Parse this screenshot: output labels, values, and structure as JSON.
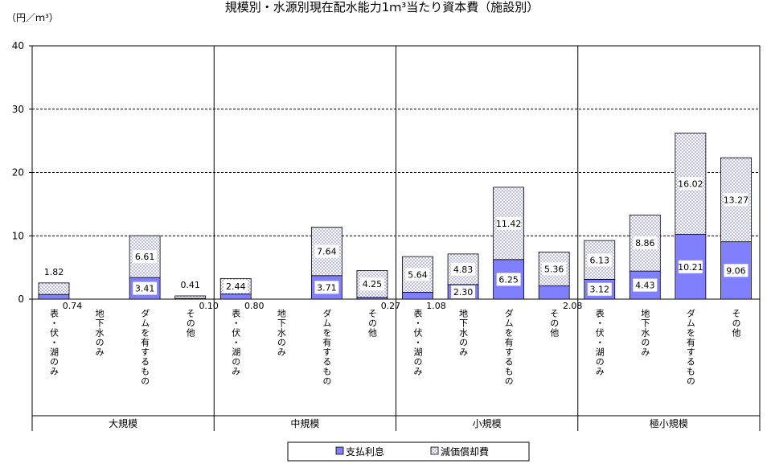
{
  "chart_data": {
    "type": "stacked_bar",
    "title": "規模別・水源別現在配水能力1ｍ³当たり資本費（施設別）",
    "y_label": "（円／ｍ³）",
    "groups": [
      "大規模",
      "中規模",
      "小規模",
      "極小規模"
    ],
    "categories": [
      "表・伏・湖のみ",
      "地下水のみ",
      "ダムを有するもの",
      "その他",
      "表・伏・湖のみ",
      "地下水のみ",
      "ダムを有するもの",
      "その他",
      "表・伏・湖のみ",
      "地下水のみ",
      "ダムを有するもの",
      "その他",
      "表・伏・湖のみ",
      "地下水のみ",
      "ダムを有するもの",
      "その他"
    ],
    "series": [
      {
        "name": "支払利息",
        "color": "#8080ff",
        "values": [
          0.74,
          null,
          3.41,
          0.1,
          0.8,
          null,
          3.71,
          0.27,
          1.08,
          2.3,
          6.25,
          2.08,
          3.12,
          4.43,
          10.21,
          9.06
        ],
        "value_labels": [
          "0.74",
          null,
          "3.41",
          "0.10",
          "0.80",
          null,
          "3.71",
          "0.27",
          "1.08",
          "2.30",
          "6.25",
          "2.08",
          "3.12",
          "4.43",
          "10.21",
          "9.06"
        ]
      },
      {
        "name": "減価償却費",
        "color": "#c8c8f0",
        "values": [
          1.82,
          null,
          6.61,
          0.41,
          2.44,
          null,
          7.64,
          4.25,
          5.64,
          4.83,
          11.42,
          5.36,
          6.13,
          8.86,
          16.02,
          13.27
        ],
        "value_labels": [
          "1.82",
          null,
          "6.61",
          "0.41",
          "2.44",
          null,
          "7.64",
          "4.25",
          "5.64",
          "4.83",
          "11.42",
          "5.36",
          "6.13",
          "8.86",
          "16.02",
          "13.27"
        ]
      }
    ],
    "ylim": [
      0,
      40
    ],
    "yticks": [
      0,
      10,
      20,
      30,
      40
    ],
    "grid": true,
    "legend": "bottom"
  }
}
